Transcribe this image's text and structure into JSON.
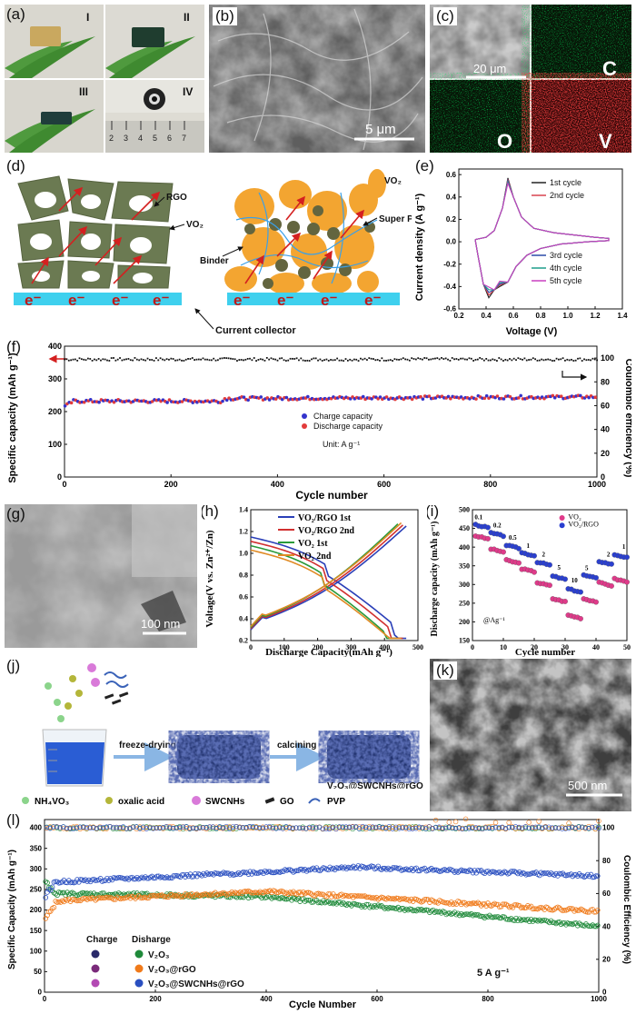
{
  "panel_labels": {
    "a": "(a)",
    "b": "(b)",
    "c": "(c)",
    "d": "(d)",
    "e": "(e)",
    "f": "(f)",
    "g": "(g)",
    "h": "(h)",
    "i": "(i)",
    "j": "(j)",
    "k": "(k)",
    "l": "(l)"
  },
  "panel_a": {
    "roman": [
      "I",
      "II",
      "III",
      "IV"
    ],
    "ruler_ticks": [
      "2",
      "3",
      "4",
      "5",
      "6",
      "7"
    ]
  },
  "panel_b": {
    "scalebar": "5 μm"
  },
  "panel_c": {
    "scalebar": "20 μm",
    "elements": [
      "C",
      "O",
      "V"
    ]
  },
  "panel_d": {
    "left_labels": {
      "rgo": "RGO",
      "vo2": "VO₂"
    },
    "right_labels": {
      "vo2": "VO₂",
      "superp": "Super P",
      "binder": "Binder"
    },
    "electron": "e⁻",
    "collector": "Current collector"
  },
  "panel_g": {
    "scalebar": "100 nm"
  },
  "panel_j": {
    "step1": "freeze-drying",
    "step2": "calcining",
    "product": "V₂O₃@SWCNHs@rGO",
    "legend": [
      "NH₄VO₃",
      "oxalic acid",
      "SWCNHs",
      "GO",
      "PVP"
    ]
  },
  "panel_k": {
    "scalebar": "500 nm"
  },
  "chart_e": {
    "type": "line",
    "xlabel": "Voltage (V)",
    "ylabel": "Current density (A g⁻¹)",
    "xlim": [
      0.2,
      1.4
    ],
    "ylim": [
      -0.6,
      0.65
    ],
    "xticks": [
      "0.2",
      "0.4",
      "0.6",
      "0.8",
      "1.0",
      "1.2",
      "1.4"
    ],
    "yticks": [
      "0.6",
      "0.4",
      "0.2",
      "0.0",
      "-0.2",
      "-0.4",
      "-0.6"
    ],
    "legend_top": [
      "1st cycle",
      "2nd cycle"
    ],
    "legend_bottom": [
      "3rd cycle",
      "4th cycle",
      "5th cycle"
    ],
    "colors": [
      "#222222",
      "#d8434f",
      "#2c4aa8",
      "#1e9e8a",
      "#c93fc0"
    ]
  },
  "chart_f": {
    "type": "scatter",
    "xlabel": "Cycle number",
    "ylabel": "Specific capacity (mAh g⁻¹)",
    "ylabel2": "Coulombic efficiency (%)",
    "xlim": [
      0,
      1000
    ],
    "ylim": [
      0,
      400
    ],
    "y2lim": [
      0,
      110
    ],
    "xticks": [
      "0",
      "200",
      "400",
      "600",
      "800",
      "1000"
    ],
    "yticks": [
      "0",
      "100",
      "200",
      "300",
      "400"
    ],
    "y2ticks": [
      "0",
      "20",
      "40",
      "60",
      "80",
      "100"
    ],
    "series": [
      {
        "name": "Charge capacity",
        "color": "#3333cc",
        "approx": 240
      },
      {
        "name": "Discharge capacity",
        "color": "#e23b3b",
        "approx": 240
      }
    ],
    "efficiency_approx": 99,
    "unit": "Unit: A g⁻¹"
  },
  "chart_h": {
    "type": "line",
    "xlabel": "Discharge Capacity(mAh g⁻¹)",
    "ylabel": "Voltage(V vs. Zn²⁺/Zn)",
    "xlim": [
      0,
      500
    ],
    "ylim": [
      0.2,
      1.4
    ],
    "xticks": [
      "0",
      "100",
      "200",
      "300",
      "400",
      "500"
    ],
    "yticks": [
      "0.2",
      "0.4",
      "0.6",
      "0.8",
      "1.0",
      "1.2",
      "1.4"
    ],
    "legend": [
      "VO₂/RGO 1st",
      "VO₂/RGO 2nd",
      "VO₂   1st",
      "VO₂   2nd"
    ],
    "colors": [
      "#2a3fb8",
      "#d13030",
      "#2a9a3a",
      "#e08a24"
    ]
  },
  "chart_i": {
    "type": "scatter",
    "xlabel": "Cycle number",
    "ylabel": "Discharge capacity (mAh g⁻¹)",
    "xlim": [
      0,
      50
    ],
    "ylim": [
      150,
      500
    ],
    "xticks": [
      "0",
      "10",
      "20",
      "30",
      "40",
      "50"
    ],
    "yticks": [
      "150",
      "200",
      "250",
      "300",
      "350",
      "400",
      "450",
      "500"
    ],
    "rate_labels": [
      "0.1",
      "0.2",
      "0.5",
      "1",
      "2",
      "5",
      "10",
      "5",
      "2",
      "1"
    ],
    "unit": "@Ag⁻¹",
    "series": [
      {
        "name": "VO₂",
        "color": "#e03a8a",
        "values": [
          430,
          420,
          390,
          372,
          350,
          330,
          312,
          300,
          290,
          282,
          262,
          258,
          225,
          218,
          260,
          265,
          300,
          305,
          315
        ]
      },
      {
        "name": "VO₂/RGO",
        "color": "#2a3fd0",
        "values": [
          462,
          455,
          440,
          432,
          408,
          400,
          385,
          378,
          362,
          355,
          325,
          318,
          290,
          285,
          322,
          328,
          360,
          368,
          380
        ]
      }
    ]
  },
  "chart_l": {
    "type": "scatter",
    "xlabel": "Cycle Number",
    "ylabel": "Specific Capacity (mAh g⁻¹)",
    "ylabel2": "Coulombic Efficiency (%)",
    "xlim": [
      0,
      1000
    ],
    "ylim": [
      0,
      420
    ],
    "y2lim": [
      0,
      105
    ],
    "xticks": [
      "0",
      "200",
      "400",
      "600",
      "800",
      "1000"
    ],
    "yticks": [
      "0",
      "50",
      "100",
      "150",
      "200",
      "250",
      "300",
      "350",
      "400"
    ],
    "y2ticks": [
      "0",
      "20",
      "40",
      "60",
      "80",
      "100"
    ],
    "legend_head": [
      "Charge",
      "Disharge"
    ],
    "series": [
      {
        "name": "V₂O₃",
        "color": "#1f8a3a"
      },
      {
        "name": "V₂O₃@rGO",
        "color": "#f07a1a"
      },
      {
        "name": "V₂O₃@SWCNHs@rGO",
        "color": "#2a4fc0"
      }
    ],
    "rate": "5 A g⁻¹"
  }
}
